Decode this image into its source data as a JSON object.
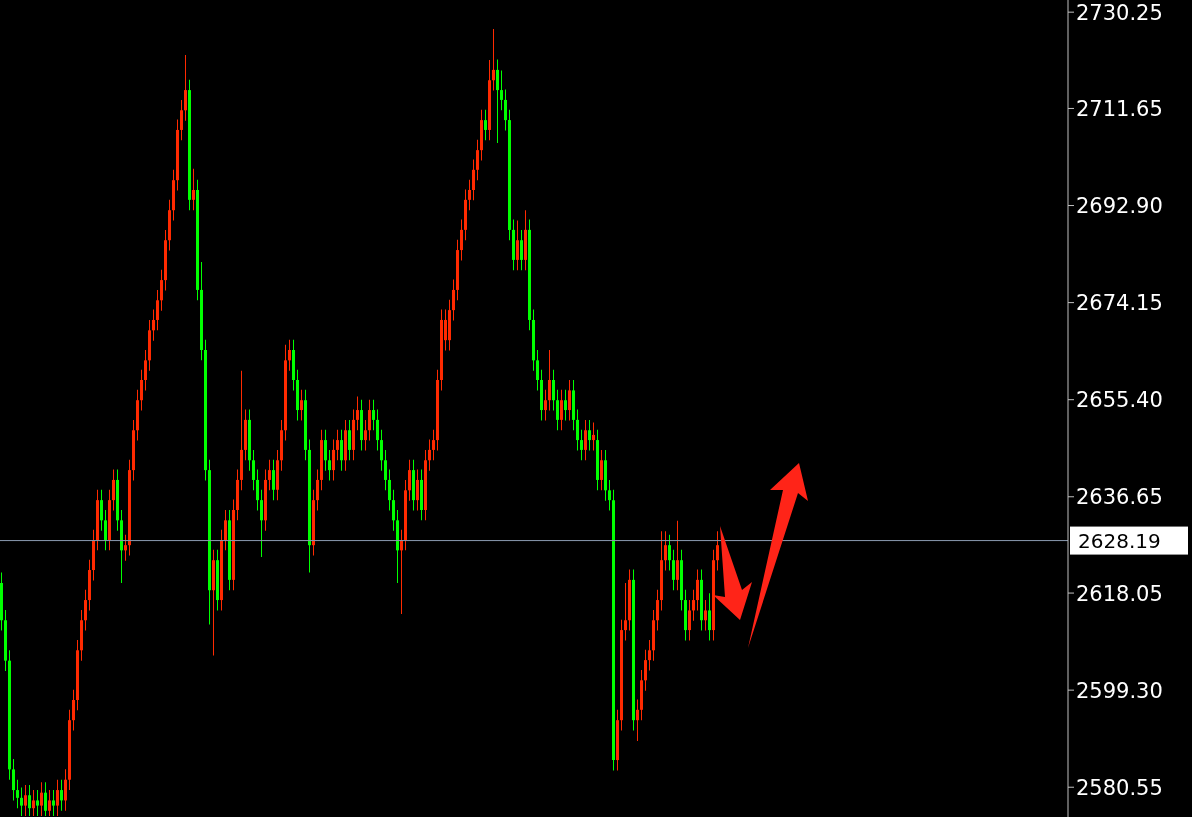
{
  "chart_data": {
    "type": "candlestick",
    "categories": [
      null,
      null,
      null,
      null,
      null,
      null,
      null,
      null,
      null,
      null,
      null,
      null,
      null,
      null,
      null,
      null,
      null,
      null,
      null,
      null,
      null,
      null,
      null,
      null,
      null,
      null,
      null,
      null,
      null,
      null,
      null,
      null,
      null,
      null,
      null,
      null,
      null,
      null,
      null,
      null,
      null,
      null,
      null,
      null,
      null,
      null,
      null,
      null,
      null,
      null,
      null,
      null,
      null,
      null,
      null,
      null,
      null,
      null,
      null,
      null,
      null,
      null,
      null,
      null,
      null,
      null,
      null,
      null,
      null,
      null,
      null,
      null,
      null,
      null,
      null,
      null,
      null,
      null,
      null,
      null,
      null,
      null,
      null,
      null,
      null,
      null,
      null,
      null,
      null,
      null,
      null,
      null,
      null,
      null,
      null,
      null,
      null,
      null,
      null,
      null,
      null,
      null,
      null,
      null,
      null,
      null,
      null,
      null,
      null,
      null,
      null,
      null,
      null,
      null,
      null,
      null,
      null,
      null,
      null,
      null,
      null,
      null,
      null,
      null,
      null,
      null,
      null,
      null,
      null,
      null,
      null,
      null,
      null,
      null,
      null,
      null,
      null,
      null,
      null,
      null,
      null,
      null,
      null,
      null,
      null,
      null,
      null,
      null,
      null,
      null,
      null,
      null,
      null,
      null,
      null,
      null,
      null,
      null,
      null,
      null,
      null,
      null,
      null,
      null,
      null,
      null,
      null,
      null,
      null,
      null,
      null,
      null,
      null,
      null,
      null,
      null,
      null,
      null,
      null,
      null,
      null,
      null,
      null,
      null,
      null,
      null,
      null,
      null,
      null,
      null,
      null,
      null,
      null,
      null,
      null,
      null,
      null,
      null,
      null,
      null,
      null,
      null,
      null,
      null,
      null,
      null,
      null,
      null,
      null,
      null,
      null,
      null,
      null,
      null,
      null,
      null,
      null,
      null,
      null,
      null,
      null,
      null,
      null,
      null,
      null,
      null,
      null,
      null,
      null,
      null,
      null,
      null,
      null,
      null,
      null,
      null,
      null,
      null,
      null,
      null,
      null,
      null,
      null,
      null,
      null,
      null,
      null,
      null,
      null,
      null,
      null,
      null,
      null,
      null,
      null,
      null,
      null,
      null,
      null,
      null,
      null,
      null,
      null,
      null,
      null,
      null,
      null
    ],
    "ohlc": [
      [
        2620.0,
        2622.0,
        2610.8,
        2612.8
      ],
      [
        2612.8,
        2614.8,
        2603.0,
        2605.0
      ],
      [
        2605.0,
        2607.0,
        2582.0,
        2584.0
      ],
      [
        2584.0,
        2586.0,
        2578.0,
        2580.0
      ],
      [
        2580.0,
        2582.0,
        2576.5,
        2578.5
      ],
      [
        2578.5,
        2580.5,
        2575.0,
        2577.0
      ],
      [
        2577.0,
        2581.0,
        2575.0,
        2579.0
      ],
      [
        2579.0,
        2581.0,
        2575.0,
        2576.5
      ],
      [
        2576.5,
        2580.0,
        2575.0,
        2578.0
      ],
      [
        2578.0,
        2580.0,
        2575.0,
        2577.0
      ],
      [
        2577.0,
        2581.5,
        2575.0,
        2579.5
      ],
      [
        2579.5,
        2581.5,
        2575.0,
        2576.0
      ],
      [
        2576.0,
        2580.0,
        2575.0,
        2578.0
      ],
      [
        2578.0,
        2580.0,
        2575.0,
        2577.0
      ],
      [
        2577.0,
        2582.0,
        2575.0,
        2580.0
      ],
      [
        2580.0,
        2582.0,
        2576.0,
        2578.0
      ],
      [
        2578.0,
        2584.0,
        2576.0,
        2582.0
      ],
      [
        2582.0,
        2595.5,
        2580.0,
        2593.5
      ],
      [
        2593.5,
        2599.4,
        2591.5,
        2597.4
      ],
      [
        2597.4,
        2609.0,
        2595.4,
        2607.0
      ],
      [
        2607.0,
        2614.8,
        2605.0,
        2612.8
      ],
      [
        2612.8,
        2618.7,
        2610.8,
        2616.7
      ],
      [
        2616.7,
        2624.5,
        2614.7,
        2622.5
      ],
      [
        2622.5,
        2630.3,
        2620.5,
        2628.3
      ],
      [
        2628.3,
        2638.0,
        2626.3,
        2636.0
      ],
      [
        2636.0,
        2638.0,
        2630.1,
        2632.1
      ],
      [
        2632.1,
        2634.1,
        2626.3,
        2628.3
      ],
      [
        2628.3,
        2638.0,
        2626.3,
        2636.0
      ],
      [
        2636.0,
        2641.9,
        2634.0,
        2639.9
      ],
      [
        2639.9,
        2641.9,
        2630.1,
        2632.1
      ],
      [
        2632.1,
        2634.1,
        2620.0,
        2626.3
      ],
      [
        2626.3,
        2629.3,
        2624.3,
        2627.3
      ],
      [
        2627.3,
        2643.8,
        2625.3,
        2641.8
      ],
      [
        2641.8,
        2651.5,
        2639.8,
        2649.5
      ],
      [
        2649.5,
        2657.3,
        2647.5,
        2655.3
      ],
      [
        2655.3,
        2661.2,
        2653.3,
        2659.2
      ],
      [
        2659.2,
        2665.0,
        2657.2,
        2663.0
      ],
      [
        2663.0,
        2670.8,
        2661.0,
        2668.8
      ],
      [
        2668.8,
        2672.8,
        2666.8,
        2670.8
      ],
      [
        2670.8,
        2676.6,
        2668.8,
        2674.6
      ],
      [
        2674.6,
        2680.5,
        2672.6,
        2678.5
      ],
      [
        2678.5,
        2688.2,
        2676.5,
        2686.2
      ],
      [
        2686.2,
        2694.0,
        2684.2,
        2692.0
      ],
      [
        2692.0,
        2699.8,
        2690.0,
        2697.8
      ],
      [
        2697.8,
        2709.5,
        2695.8,
        2707.5
      ],
      [
        2707.5,
        2713.3,
        2705.5,
        2711.3
      ],
      [
        2711.3,
        2722.0,
        2709.3,
        2715.2
      ],
      [
        2715.2,
        2717.2,
        2692.0,
        2694.0
      ],
      [
        2694.0,
        2700.0,
        2692.0,
        2695.9
      ],
      [
        2695.9,
        2697.9,
        2674.6,
        2676.6
      ],
      [
        2676.6,
        2682.0,
        2663.0,
        2665.0
      ],
      [
        2665.0,
        2667.0,
        2639.8,
        2641.8
      ],
      [
        2641.8,
        2643.8,
        2612.0,
        2618.6
      ],
      [
        2618.6,
        2626.4,
        2606.0,
        2624.4
      ],
      [
        2624.4,
        2626.4,
        2614.7,
        2616.7
      ],
      [
        2616.7,
        2630.3,
        2614.7,
        2628.3
      ],
      [
        2628.3,
        2634.1,
        2626.3,
        2632.1
      ],
      [
        2632.1,
        2634.1,
        2618.6,
        2620.6
      ],
      [
        2620.6,
        2636.1,
        2618.6,
        2634.1
      ],
      [
        2634.1,
        2641.9,
        2632.1,
        2639.9
      ],
      [
        2639.9,
        2661.0,
        2637.9,
        2645.7
      ],
      [
        2645.7,
        2653.5,
        2643.7,
        2651.5
      ],
      [
        2651.5,
        2653.5,
        2641.7,
        2643.7
      ],
      [
        2643.7,
        2645.7,
        2637.9,
        2639.9
      ],
      [
        2639.9,
        2641.9,
        2634.0,
        2636.0
      ],
      [
        2636.0,
        2638.0,
        2625.0,
        2632.1
      ],
      [
        2632.1,
        2641.9,
        2630.1,
        2639.9
      ],
      [
        2639.9,
        2643.8,
        2637.9,
        2641.8
      ],
      [
        2641.8,
        2643.8,
        2636.0,
        2638.0
      ],
      [
        2638.0,
        2645.7,
        2636.0,
        2643.7
      ],
      [
        2643.7,
        2651.5,
        2641.7,
        2649.5
      ],
      [
        2649.5,
        2666.0,
        2647.5,
        2663.0
      ],
      [
        2663.0,
        2667.0,
        2661.0,
        2665.0
      ],
      [
        2665.0,
        2667.0,
        2657.2,
        2659.2
      ],
      [
        2659.2,
        2661.2,
        2651.4,
        2653.4
      ],
      [
        2653.4,
        2657.3,
        2651.4,
        2655.3
      ],
      [
        2655.3,
        2657.3,
        2643.7,
        2645.7
      ],
      [
        2645.7,
        2647.7,
        2622.0,
        2627.3
      ],
      [
        2627.3,
        2638.0,
        2625.3,
        2636.0
      ],
      [
        2636.0,
        2641.9,
        2634.0,
        2639.9
      ],
      [
        2639.9,
        2649.6,
        2637.9,
        2647.6
      ],
      [
        2647.6,
        2649.6,
        2641.7,
        2643.7
      ],
      [
        2643.7,
        2645.7,
        2639.8,
        2641.8
      ],
      [
        2641.8,
        2647.7,
        2639.8,
        2645.7
      ],
      [
        2645.7,
        2649.6,
        2643.7,
        2647.6
      ],
      [
        2647.6,
        2649.6,
        2641.7,
        2643.7
      ],
      [
        2643.7,
        2651.5,
        2641.7,
        2649.5
      ],
      [
        2649.5,
        2651.5,
        2643.7,
        2645.7
      ],
      [
        2645.7,
        2653.5,
        2643.7,
        2651.5
      ],
      [
        2651.5,
        2656.0,
        2649.5,
        2653.4
      ],
      [
        2653.4,
        2655.4,
        2645.6,
        2647.6
      ],
      [
        2647.6,
        2651.5,
        2645.6,
        2649.5
      ],
      [
        2649.5,
        2655.4,
        2647.5,
        2653.4
      ],
      [
        2653.4,
        2655.4,
        2649.5,
        2651.5
      ],
      [
        2651.5,
        2653.5,
        2645.6,
        2647.6
      ],
      [
        2647.6,
        2649.6,
        2641.7,
        2643.7
      ],
      [
        2643.7,
        2645.7,
        2637.9,
        2639.9
      ],
      [
        2639.9,
        2641.9,
        2634.0,
        2636.0
      ],
      [
        2636.0,
        2638.0,
        2630.1,
        2632.1
      ],
      [
        2632.1,
        2634.1,
        2620.0,
        2626.3
      ],
      [
        2626.3,
        2630.3,
        2614.0,
        2628.3
      ],
      [
        2628.3,
        2639.9,
        2626.3,
        2637.9
      ],
      [
        2637.9,
        2643.8,
        2635.9,
        2641.8
      ],
      [
        2641.8,
        2643.8,
        2634.0,
        2636.0
      ],
      [
        2636.0,
        2641.9,
        2634.0,
        2639.9
      ],
      [
        2639.9,
        2641.9,
        2632.1,
        2634.1
      ],
      [
        2634.1,
        2645.7,
        2632.1,
        2643.7
      ],
      [
        2643.7,
        2647.7,
        2641.7,
        2645.7
      ],
      [
        2645.7,
        2649.6,
        2643.7,
        2647.6
      ],
      [
        2647.6,
        2661.2,
        2645.6,
        2659.2
      ],
      [
        2659.2,
        2672.8,
        2657.2,
        2670.8
      ],
      [
        2666.9,
        2672.8,
        2664.9,
        2670.8
      ],
      [
        2666.9,
        2674.7,
        2664.9,
        2672.7
      ],
      [
        2672.7,
        2678.6,
        2670.7,
        2676.6
      ],
      [
        2676.6,
        2686.3,
        2674.6,
        2684.3
      ],
      [
        2684.3,
        2690.2,
        2682.3,
        2688.2
      ],
      [
        2688.2,
        2696.0,
        2686.2,
        2694.0
      ],
      [
        2694.0,
        2697.9,
        2692.0,
        2695.9
      ],
      [
        2695.9,
        2701.8,
        2693.9,
        2699.8
      ],
      [
        2699.8,
        2705.6,
        2697.8,
        2703.6
      ],
      [
        2703.6,
        2711.4,
        2701.6,
        2709.4
      ],
      [
        2709.4,
        2711.4,
        2705.5,
        2707.5
      ],
      [
        2707.5,
        2721.0,
        2705.5,
        2717.1
      ],
      [
        2717.1,
        2727.0,
        2715.1,
        2719.1
      ],
      [
        2719.1,
        2721.1,
        2705.0,
        2715.2
      ],
      [
        2715.2,
        2719.0,
        2711.3,
        2713.3
      ],
      [
        2713.3,
        2715.3,
        2707.4,
        2709.4
      ],
      [
        2709.4,
        2711.4,
        2686.2,
        2688.2
      ],
      [
        2688.2,
        2690.2,
        2680.4,
        2682.4
      ],
      [
        2682.4,
        2690.0,
        2680.4,
        2686.2
      ],
      [
        2686.2,
        2688.2,
        2680.4,
        2682.4
      ],
      [
        2682.4,
        2692.0,
        2680.4,
        2688.2
      ],
      [
        2688.2,
        2690.2,
        2668.8,
        2670.8
      ],
      [
        2670.8,
        2672.8,
        2661.0,
        2663.0
      ],
      [
        2663.0,
        2665.0,
        2657.2,
        2659.2
      ],
      [
        2659.2,
        2661.2,
        2651.4,
        2653.4
      ],
      [
        2653.4,
        2657.3,
        2651.4,
        2655.3
      ],
      [
        2655.3,
        2665.0,
        2653.3,
        2659.2
      ],
      [
        2659.2,
        2661.2,
        2653.3,
        2655.3
      ],
      [
        2655.3,
        2657.3,
        2649.5,
        2651.5
      ],
      [
        2651.5,
        2657.3,
        2649.5,
        2655.3
      ],
      [
        2655.3,
        2657.3,
        2651.4,
        2653.4
      ],
      [
        2653.4,
        2659.2,
        2651.4,
        2657.2
      ],
      [
        2657.2,
        2659.2,
        2649.5,
        2651.5
      ],
      [
        2651.5,
        2653.5,
        2645.6,
        2647.6
      ],
      [
        2647.6,
        2649.6,
        2643.7,
        2645.7
      ],
      [
        2645.7,
        2651.5,
        2643.7,
        2649.5
      ],
      [
        2649.5,
        2651.5,
        2645.6,
        2647.6
      ],
      [
        2647.6,
        2651.0,
        2645.6,
        2648.6
      ],
      [
        2647.6,
        2649.6,
        2637.9,
        2639.9
      ],
      [
        2639.9,
        2645.7,
        2637.9,
        2643.7
      ],
      [
        2643.7,
        2645.7,
        2635.9,
        2637.9
      ],
      [
        2637.9,
        2639.9,
        2634.0,
        2636.0
      ],
      [
        2636.0,
        2638.0,
        2583.8,
        2585.8
      ],
      [
        2585.8,
        2595.5,
        2583.8,
        2593.5
      ],
      [
        2593.5,
        2612.9,
        2591.5,
        2610.9
      ],
      [
        2610.9,
        2620.0,
        2608.9,
        2612.8
      ],
      [
        2612.8,
        2622.6,
        2610.8,
        2620.6
      ],
      [
        2620.6,
        2622.6,
        2591.5,
        2593.5
      ],
      [
        2593.5,
        2597.5,
        2589.5,
        2595.5
      ],
      [
        2595.5,
        2603.2,
        2593.5,
        2601.2
      ],
      [
        2601.2,
        2607.1,
        2599.2,
        2605.1
      ],
      [
        2605.1,
        2609.0,
        2603.1,
        2607.0
      ],
      [
        2607.0,
        2614.8,
        2605.0,
        2612.8
      ],
      [
        2612.8,
        2618.7,
        2610.8,
        2616.7
      ],
      [
        2616.7,
        2630.0,
        2614.7,
        2624.4
      ],
      [
        2624.4,
        2630.0,
        2622.4,
        2627.3
      ],
      [
        2627.3,
        2629.3,
        2622.4,
        2624.4
      ],
      [
        2624.4,
        2626.4,
        2618.6,
        2620.6
      ],
      [
        2620.6,
        2632.0,
        2618.6,
        2624.4
      ],
      [
        2624.4,
        2626.4,
        2614.7,
        2616.7
      ],
      [
        2616.7,
        2618.7,
        2608.9,
        2610.9
      ],
      [
        2610.9,
        2616.7,
        2608.9,
        2614.7
      ],
      [
        2614.7,
        2618.7,
        2612.7,
        2616.7
      ],
      [
        2616.7,
        2622.6,
        2614.7,
        2620.6
      ],
      [
        2620.6,
        2622.6,
        2610.8,
        2612.8
      ],
      [
        2612.8,
        2616.7,
        2610.8,
        2614.7
      ],
      [
        2614.7,
        2618.0,
        2608.9,
        2610.9
      ],
      [
        2610.9,
        2626.4,
        2608.9,
        2624.4
      ],
      [
        2624.4,
        2630.0,
        2622.4,
        2627.3
      ],
      null,
      null,
      null,
      null,
      null,
      null,
      null,
      null,
      null,
      null,
      null,
      null,
      null,
      null,
      null,
      null,
      null,
      null,
      null,
      null,
      null,
      null,
      null,
      null,
      null,
      null,
      null,
      null,
      null,
      null,
      null,
      null,
      null,
      null,
      null,
      null,
      null,
      null,
      null,
      null,
      null,
      null,
      null,
      null,
      null,
      null,
      null,
      null,
      null,
      null,
      null,
      null,
      null,
      null,
      null,
      null,
      null,
      null,
      null,
      null,
      null,
      null,
      null,
      null,
      null,
      null,
      null,
      null,
      null,
      null,
      null,
      null,
      null,
      null,
      null,
      null,
      null,
      null,
      null,
      null,
      null,
      null,
      null,
      null,
      null,
      null,
      null
    ],
    "colors": [
      "#00ff00",
      "#00ff00",
      "#00ff00",
      "#00ff00",
      "#00ff00",
      "#00ff00",
      "#ff2a00",
      "#00ff00",
      "#ff2a00",
      "#00ff00",
      "#ff2a00",
      "#00ff00",
      "#ff2a00",
      "#00ff00",
      "#ff2a00",
      "#00ff00",
      "#ff2a00",
      "#ff2a00",
      "#ff2a00",
      "#ff2a00",
      "#ff2a00",
      "#ff2a00",
      "#ff2a00",
      "#ff2a00",
      "#ff2a00",
      "#00ff00",
      "#00ff00",
      "#ff2a00",
      "#ff2a00",
      "#00ff00",
      "#00ff00",
      "#ff2a00",
      "#ff2a00",
      "#ff2a00",
      "#ff2a00",
      "#ff2a00",
      "#ff2a00",
      "#ff2a00",
      "#ff2a00",
      "#ff2a00",
      "#ff2a00",
      "#ff2a00",
      "#ff2a00",
      "#ff2a00",
      "#ff2a00",
      "#ff2a00",
      "#ff2a00",
      "#00ff00",
      "#ff2a00",
      "#00ff00",
      "#00ff00",
      "#00ff00",
      "#00ff00",
      "#ff2a00",
      "#00ff00",
      "#ff2a00",
      "#ff2a00",
      "#00ff00",
      "#ff2a00",
      "#ff2a00",
      "#ff2a00",
      "#ff2a00",
      "#00ff00",
      "#00ff00",
      "#00ff00",
      "#00ff00",
      "#ff2a00",
      "#ff2a00",
      "#00ff00",
      "#ff2a00",
      "#ff2a00",
      "#ff2a00",
      "#ff2a00",
      "#00ff00",
      "#00ff00",
      "#ff2a00",
      "#00ff00",
      "#00ff00",
      "#ff2a00",
      "#ff2a00",
      "#ff2a00",
      "#00ff00",
      "#00ff00",
      "#ff2a00",
      "#ff2a00",
      "#00ff00",
      "#ff2a00",
      "#00ff00",
      "#ff2a00",
      "#ff2a00",
      "#00ff00",
      "#ff2a00",
      "#ff2a00",
      "#00ff00",
      "#00ff00",
      "#00ff00",
      "#00ff00",
      "#00ff00",
      "#00ff00",
      "#00ff00",
      "#ff2a00",
      "#ff2a00",
      "#ff2a00",
      "#00ff00",
      "#ff2a00",
      "#00ff00",
      "#ff2a00",
      "#ff2a00",
      "#ff2a00",
      "#ff2a00",
      "#ff2a00",
      "#ff2a00",
      "#ff2a00",
      "#ff2a00",
      "#ff2a00",
      "#ff2a00",
      "#ff2a00",
      "#ff2a00",
      "#ff2a00",
      "#ff2a00",
      "#ff2a00",
      "#00ff00",
      "#ff2a00",
      "#ff2a00",
      "#00ff00",
      "#00ff00",
      "#00ff00",
      "#00ff00",
      "#00ff00",
      "#ff2a00",
      "#00ff00",
      "#ff2a00",
      "#00ff00",
      "#00ff00",
      "#00ff00",
      "#00ff00",
      "#ff2a00",
      "#ff2a00",
      "#00ff00",
      "#00ff00",
      "#ff2a00",
      "#00ff00",
      "#ff2a00",
      "#00ff00",
      "#00ff00",
      "#00ff00",
      "#ff2a00",
      "#00ff00",
      "#ff2a00",
      "#00ff00",
      "#ff2a00",
      "#00ff00",
      "#00ff00",
      "#00ff00",
      "#ff2a00",
      "#ff2a00",
      "#ff2a00",
      "#ff2a00",
      "#00ff00",
      "#ff2a00",
      "#ff2a00",
      "#ff2a00",
      "#ff2a00",
      "#ff2a00",
      "#ff2a00",
      "#ff2a00",
      "#ff2a00",
      "#00ff00",
      "#00ff00",
      "#ff2a00",
      "#00ff00",
      "#00ff00",
      "#ff2a00",
      "#ff2a00",
      "#ff2a00",
      "#00ff00",
      "#ff2a00",
      "#00ff00",
      "#ff2a00",
      "#ff2a00",
      null,
      null,
      null,
      null,
      null,
      null,
      null,
      null,
      null,
      null,
      null,
      null,
      null,
      null,
      null,
      null,
      null,
      null,
      null,
      null,
      null,
      null,
      null,
      null,
      null,
      null,
      null,
      null,
      null,
      null,
      null,
      null,
      null,
      null,
      null,
      null,
      null,
      null,
      null,
      null,
      null,
      null,
      null,
      null,
      null,
      null,
      null,
      null,
      null,
      null,
      null,
      null,
      null,
      null,
      null,
      null,
      null,
      null,
      null,
      null,
      null,
      null,
      null,
      null,
      null,
      null,
      null,
      null,
      null,
      null,
      null,
      null,
      null,
      null,
      null,
      null,
      null,
      null,
      null,
      null,
      null,
      null,
      null,
      null,
      null,
      null,
      null
    ],
    "ylim": [
      2574.8,
      2732.6
    ],
    "yticks": [
      2730.25,
      2711.65,
      {
        "value": 2692.9,
        "label": "2692.90"
      },
      2674.15,
      {
        "value": 2655.4,
        "label": "2655.40"
      },
      2636.65,
      2618.05,
      {
        "value": 2599.3,
        "label": "2599.30"
      },
      2580.55
    ],
    "ref_lines": [
      {
        "axis": "y",
        "value": 2628.19,
        "label": "2628.19",
        "color": "#8a9ab0"
      }
    ],
    "tick_labels": "y",
    "grid": false,
    "legend": false
  }
}
